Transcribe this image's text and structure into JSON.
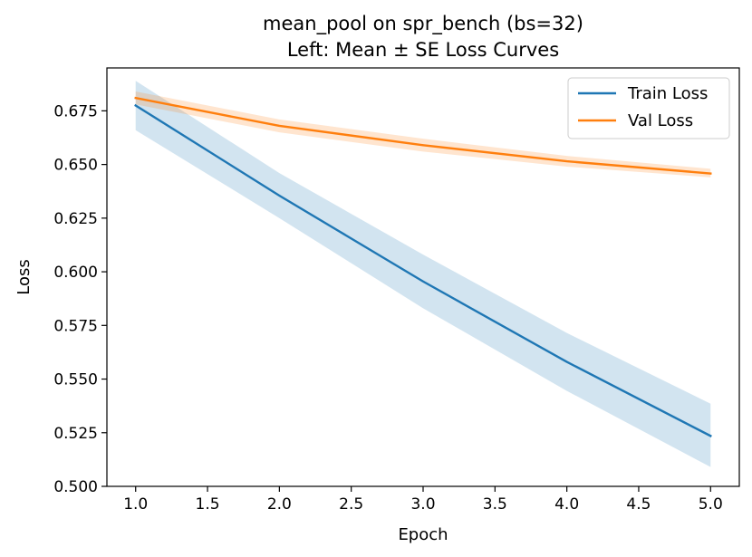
{
  "chart_data": {
    "type": "line",
    "title": "mean_pool on spr_bench (bs=32)",
    "subtitle": "Left: Mean ± SE Loss Curves",
    "xlabel": "Epoch",
    "ylabel": "Loss",
    "xlim": [
      0.8,
      5.2
    ],
    "ylim": [
      0.5,
      0.695
    ],
    "xticks": [
      "1.0",
      "1.5",
      "2.0",
      "2.5",
      "3.0",
      "3.5",
      "4.0",
      "4.5",
      "5.0"
    ],
    "yticks": [
      "0.500",
      "0.525",
      "0.550",
      "0.575",
      "0.600",
      "0.625",
      "0.650",
      "0.675"
    ],
    "grid": false,
    "legend_position": "top-right",
    "x": [
      1,
      2,
      3,
      4,
      5
    ],
    "series": [
      {
        "name": "Train Loss",
        "color": "#1f77b4",
        "values": [
          0.6775,
          0.6355,
          0.5955,
          0.558,
          0.5235
        ],
        "se_lower": [
          0.666,
          0.625,
          0.583,
          0.5445,
          0.509
        ],
        "se_upper": [
          0.689,
          0.646,
          0.608,
          0.5715,
          0.5385
        ]
      },
      {
        "name": "Val Loss",
        "color": "#ff7f0e",
        "values": [
          0.681,
          0.668,
          0.659,
          0.6515,
          0.6458
        ],
        "se_lower": [
          0.678,
          0.665,
          0.656,
          0.649,
          0.644
        ],
        "se_upper": [
          0.684,
          0.671,
          0.662,
          0.654,
          0.648
        ]
      }
    ]
  }
}
